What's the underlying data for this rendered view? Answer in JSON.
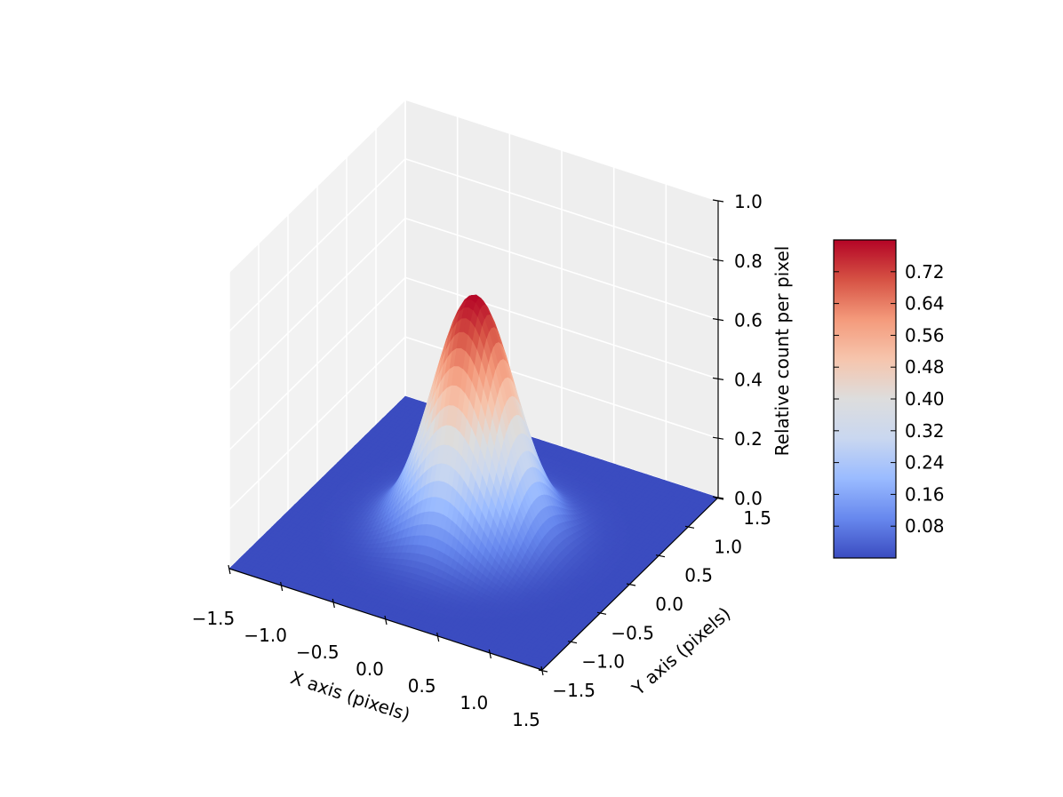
{
  "chart_data": {
    "type": "surface3d",
    "title": "",
    "xlabel": "X axis (pixels)",
    "ylabel": "Y axis (pixels)",
    "zlabel": "Relative count per pixel",
    "x_ticks": [
      "−1.5",
      "−1.0",
      "−0.5",
      "0.0",
      "0.5",
      "1.0",
      "1.5"
    ],
    "y_ticks": [
      "−1.5",
      "−1.0",
      "−0.5",
      "0.0",
      "0.5",
      "1.0",
      "1.5"
    ],
    "z_ticks": [
      "0.0",
      "0.2",
      "0.4",
      "0.6",
      "0.8",
      "1.0"
    ],
    "xlim": [
      -1.5,
      1.5
    ],
    "ylim": [
      -1.5,
      1.5
    ],
    "zlim": [
      0,
      1.0
    ],
    "surface": {
      "function": "gaussian",
      "peak": 0.8,
      "center": [
        0,
        0
      ],
      "sigma": 0.35
    },
    "colorbar": {
      "ticks": [
        "0.08",
        "0.16",
        "0.24",
        "0.32",
        "0.40",
        "0.48",
        "0.56",
        "0.64",
        "0.72"
      ],
      "range": [
        0,
        0.8
      ],
      "colormap": [
        "#3b4cc0",
        "#6788ee",
        "#9abbff",
        "#c9d7f0",
        "#dddddd",
        "#f6c5ad",
        "#f49a7b",
        "#d65244",
        "#b40426"
      ]
    },
    "grid": true,
    "pane_colors": {
      "back": "#eeeeee",
      "side": "#f2f2f2",
      "floor": "#e6e6e6"
    }
  }
}
